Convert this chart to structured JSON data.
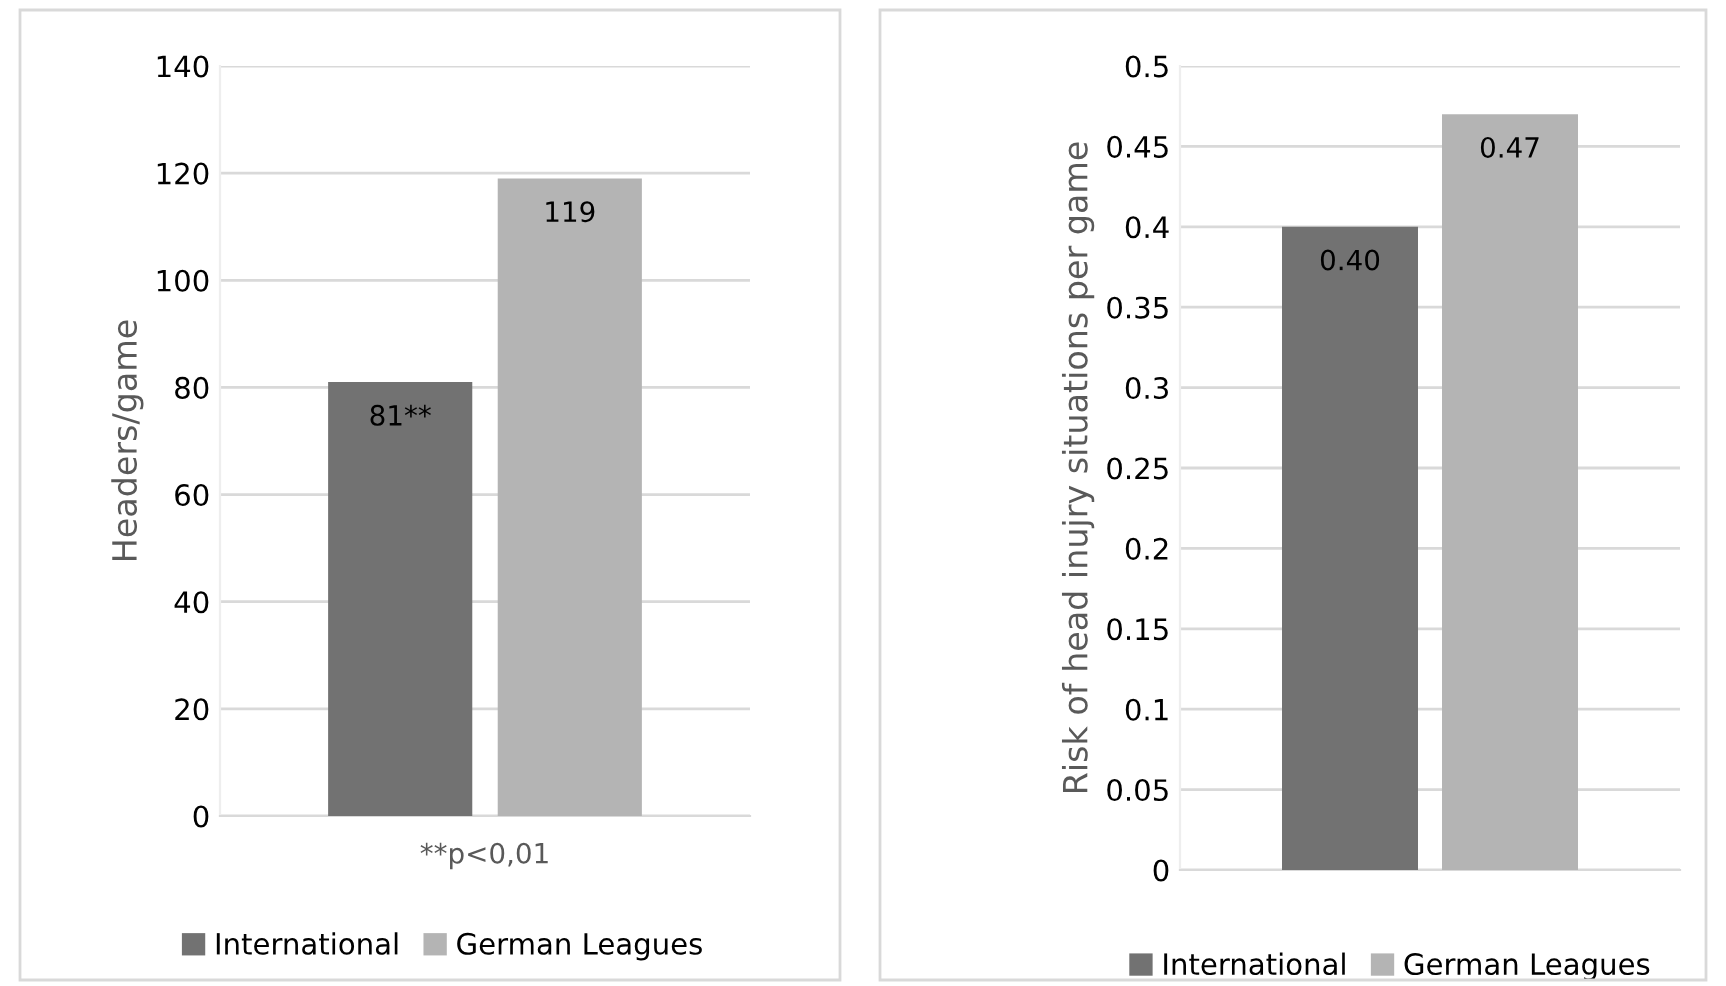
{
  "chart_data": [
    {
      "type": "bar",
      "categories": [
        null
      ],
      "ylabel": "Headers/game",
      "ylim": [
        0,
        140
      ],
      "yticks": [
        0,
        20,
        40,
        60,
        80,
        100,
        120,
        140
      ],
      "grid": "y",
      "legend": "bottom",
      "annotations": [
        "**p<0,01"
      ],
      "series": [
        {
          "name": "International",
          "color": "#727272",
          "values": [
            81
          ],
          "value_labels": [
            "81**"
          ]
        },
        {
          "name": "German Leagues",
          "color": "#b4b4b4",
          "values": [
            119
          ],
          "value_labels": [
            "119"
          ]
        }
      ]
    },
    {
      "type": "bar",
      "categories": [
        null
      ],
      "ylabel": "Risk of head inujry situations per game",
      "ylim": [
        0,
        0.5
      ],
      "yticks": [
        0,
        0.05,
        0.1,
        0.15,
        0.2,
        0.25,
        0.3,
        0.35,
        0.4,
        0.45,
        0.5
      ],
      "grid": "y",
      "legend": "bottom",
      "series": [
        {
          "name": "International",
          "color": "#727272",
          "values": [
            0.4
          ],
          "value_labels": [
            "0.40"
          ]
        },
        {
          "name": "German Leagues",
          "color": "#b4b4b4",
          "values": [
            0.47
          ],
          "value_labels": [
            "0.47"
          ]
        }
      ]
    }
  ]
}
